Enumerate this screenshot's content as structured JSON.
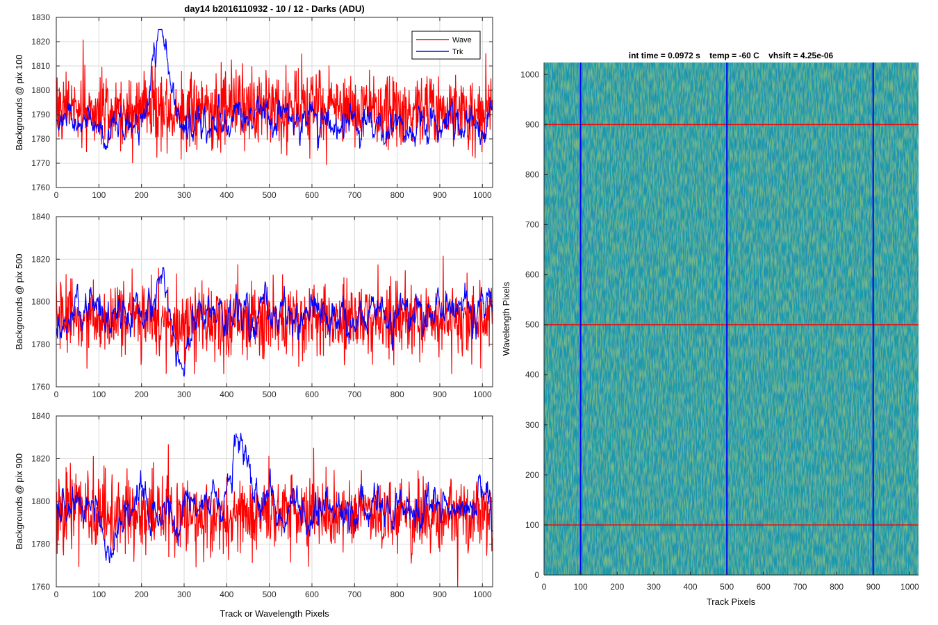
{
  "figure": {
    "title": "day14 b2016110932 - 10 / 12 - Darks (ADU)",
    "shared_xlabel": "Track or Wavelength Pixels"
  },
  "colors": {
    "wave": "#ff0000",
    "trk": "#0000ff",
    "image_base": "#1fa0a8",
    "image_dark": "#2b6fc9",
    "image_light": "#9bd04a",
    "axes_bg": "#ffffff",
    "grid": "#d9d9d9"
  },
  "chart_data": [
    {
      "type": "line",
      "ylabel": "Backgrounds @ pix 100",
      "xlim": [
        0,
        1024
      ],
      "ylim": [
        1760,
        1830
      ],
      "xticks": [
        0,
        100,
        200,
        300,
        400,
        500,
        600,
        700,
        800,
        900,
        1000
      ],
      "yticks": [
        1760,
        1770,
        1780,
        1790,
        1800,
        1810,
        1820,
        1830
      ],
      "grid": true,
      "legend": {
        "location": "top-right",
        "entries": [
          "Wave",
          "Trk"
        ]
      },
      "series": [
        {
          "name": "Wave",
          "color": "#ff0000",
          "x_range": [
            0,
            1023
          ],
          "approx_mean": 1792,
          "approx_min": 1765,
          "approx_max": 1825,
          "noise_sd": 8
        },
        {
          "name": "Trk",
          "color": "#0000ff",
          "x_range": [
            0,
            1023
          ],
          "approx_mean": 1787,
          "approx_min": 1767,
          "approx_max": 1825,
          "noise_sd": 5,
          "features": [
            {
              "x": 245,
              "peak": 1825
            }
          ]
        }
      ]
    },
    {
      "type": "line",
      "ylabel": "Backgrounds @ pix 500",
      "xlim": [
        0,
        1024
      ],
      "ylim": [
        1760,
        1840
      ],
      "xticks": [
        0,
        100,
        200,
        300,
        400,
        500,
        600,
        700,
        800,
        900,
        1000
      ],
      "yticks": [
        1760,
        1780,
        1800,
        1820,
        1840
      ],
      "grid": true,
      "series": [
        {
          "name": "Wave",
          "color": "#ff0000",
          "x_range": [
            0,
            1023
          ],
          "approx_mean": 1792,
          "approx_min": 1766,
          "approx_max": 1832,
          "noise_sd": 9
        },
        {
          "name": "Trk",
          "color": "#0000ff",
          "x_range": [
            0,
            1023
          ],
          "approx_mean": 1794,
          "approx_min": 1765,
          "approx_max": 1816,
          "noise_sd": 6,
          "features": [
            {
              "x": 250,
              "peak": 1816
            },
            {
              "x": 295,
              "trough": 1765
            }
          ]
        }
      ]
    },
    {
      "type": "line",
      "ylabel": "Backgrounds @ pix 900",
      "xlabel": "Track or Wavelength Pixels",
      "xlim": [
        0,
        1024
      ],
      "ylim": [
        1760,
        1840
      ],
      "xticks": [
        0,
        100,
        200,
        300,
        400,
        500,
        600,
        700,
        800,
        900,
        1000
      ],
      "yticks": [
        1760,
        1780,
        1800,
        1820,
        1840
      ],
      "grid": true,
      "series": [
        {
          "name": "Wave",
          "color": "#ff0000",
          "x_range": [
            0,
            1023
          ],
          "approx_mean": 1794,
          "approx_min": 1760,
          "approx_max": 1828,
          "noise_sd": 9
        },
        {
          "name": "Trk",
          "color": "#0000ff",
          "x_range": [
            0,
            1023
          ],
          "approx_mean": 1797,
          "approx_min": 1768,
          "approx_max": 1833,
          "noise_sd": 6,
          "features": [
            {
              "x": 430,
              "peak": 1833
            },
            {
              "x": 130,
              "trough": 1770
            }
          ]
        }
      ]
    },
    {
      "type": "heatmap",
      "title": "int time = 0.0972 s    temp = -60 C    vhsift = 4.25e-06",
      "xlabel": "Track Pixels",
      "ylabel": "Wavelength Pixels",
      "xlim": [
        0,
        1024
      ],
      "ylim": [
        0,
        1024
      ],
      "xticks": [
        0,
        100,
        200,
        300,
        400,
        500,
        600,
        700,
        800,
        900,
        1000
      ],
      "yticks": [
        0,
        100,
        200,
        300,
        400,
        500,
        600,
        700,
        800,
        900,
        1000
      ],
      "grid": false,
      "colormap": "parula",
      "vertical_markers": {
        "color": "#0000ff",
        "x": [
          100,
          500,
          900
        ]
      },
      "horizontal_markers": {
        "color": "#ff0000",
        "y": [
          100,
          500,
          900
        ]
      }
    }
  ]
}
